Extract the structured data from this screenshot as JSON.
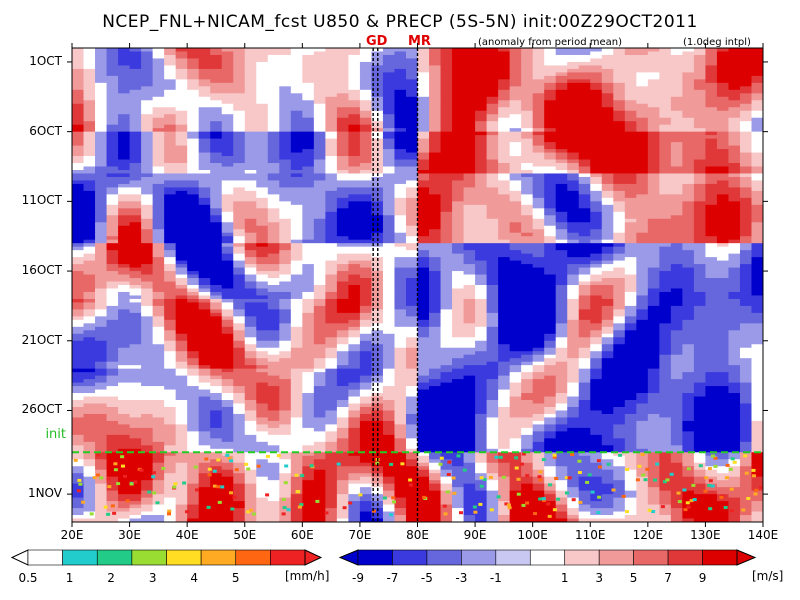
{
  "title": "NCEP_FNL+NICAM_fcst U850 & PRECP (5S-5N) init:00Z29OCT2011",
  "subtitle": "(anomaly from period mean)",
  "intpl_note": "(1.0deg intpl)",
  "markers": {
    "gd": "GD",
    "mr": "MR"
  },
  "init_label": "init",
  "colors": {
    "blue": [
      "#0000cc",
      "#3a3adf",
      "#6666dd",
      "#9a9ae8",
      "#c8c8f2"
    ],
    "white": "#ffffff",
    "red": [
      "#f8c8c8",
      "#f09a9a",
      "#e86868",
      "#e03838",
      "#dd0000"
    ],
    "precip": [
      "#ffffff",
      "#22cccc",
      "#22cc88",
      "#99dd33",
      "#ffdd22",
      "#ffaa22",
      "#ff6611",
      "#ee2222"
    ],
    "init_line": "#22cc22"
  },
  "chart_data": {
    "type": "heatmap",
    "title": "NCEP_FNL+NICAM_fcst U850 & PRECP (5S-5N) init:00Z29OCT2011",
    "x_axis": {
      "ticks": [
        "20E",
        "30E",
        "40E",
        "50E",
        "60E",
        "70E",
        "80E",
        "90E",
        "100E",
        "110E",
        "120E",
        "130E",
        "140E"
      ],
      "values": [
        20,
        30,
        40,
        50,
        60,
        70,
        80,
        90,
        100,
        110,
        120,
        130,
        140
      ],
      "range": [
        20,
        140
      ]
    },
    "y_axis": {
      "ticks": [
        "1OCT",
        "6OCT",
        "11OCT",
        "16OCT",
        "21OCT",
        "26OCT",
        "1NOV"
      ],
      "values": [
        0,
        5,
        10,
        15,
        20,
        25,
        31
      ],
      "range": [
        -1,
        33
      ],
      "direction": "time increases downward"
    },
    "init_day": 28,
    "vertical_markers": [
      {
        "label": "GD",
        "lons": [
          72.3,
          73.1
        ]
      },
      {
        "label": "MR",
        "lons": [
          80
        ]
      }
    ],
    "u850_colorbar": {
      "labels": [
        "-9",
        "-7",
        "-5",
        "-3",
        "-1",
        "1",
        "3",
        "5",
        "7",
        "9"
      ],
      "levels": [
        -9,
        -7,
        -5,
        -3,
        -1,
        1,
        3,
        5,
        7,
        9
      ],
      "unit": "[m/s]"
    },
    "precip_colorbar": {
      "labels": [
        "0.5",
        "1",
        "2",
        "3",
        "4",
        "5"
      ],
      "levels": [
        0.5,
        1,
        2,
        3,
        4,
        5
      ],
      "unit": "[mm/h]"
    }
  }
}
